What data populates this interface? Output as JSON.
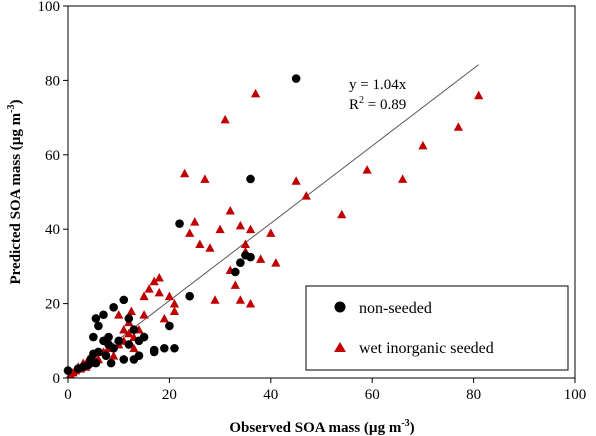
{
  "chart_data": {
    "type": "scatter",
    "xlabel": "Observed SOA mass (µg m",
    "ylabel": "Predicted SOA mass (µg m",
    "axis_unit_exponent": "-3",
    "xlim": [
      0,
      100
    ],
    "ylim": [
      0,
      100
    ],
    "x_ticks": [
      "0",
      "20",
      "40",
      "60",
      "80",
      "100"
    ],
    "y_ticks": [
      "0",
      "20",
      "40",
      "60",
      "80",
      "100"
    ],
    "grid": false,
    "legend_position": "bottom-right",
    "fit_line": {
      "equation": "y = 1.04x",
      "slope": 1.04,
      "x_range": [
        0,
        81
      ],
      "r2_prefix": "R",
      "r2_exponent": "2",
      "r2_value": " = 0.89",
      "color": "#595959"
    },
    "series": [
      {
        "name": "non-seeded",
        "marker": "circle",
        "color": "#000000",
        "points": [
          [
            0,
            2
          ],
          [
            2,
            2.5
          ],
          [
            3,
            3
          ],
          [
            4,
            3.5
          ],
          [
            4.5,
            5
          ],
          [
            5,
            6.5
          ],
          [
            5.5,
            4
          ],
          [
            6,
            7
          ],
          [
            5,
            11
          ],
          [
            5.5,
            16
          ],
          [
            6,
            14
          ],
          [
            7,
            17
          ],
          [
            7,
            10
          ],
          [
            7.5,
            6
          ],
          [
            8,
            11
          ],
          [
            8,
            9
          ],
          [
            8.5,
            4
          ],
          [
            9,
            8
          ],
          [
            9,
            19
          ],
          [
            10,
            10
          ],
          [
            11,
            21
          ],
          [
            11,
            5
          ],
          [
            12,
            9
          ],
          [
            12,
            16
          ],
          [
            13,
            13
          ],
          [
            13,
            5
          ],
          [
            14,
            10
          ],
          [
            14,
            6
          ],
          [
            15,
            11
          ],
          [
            17,
            7
          ],
          [
            17,
            7.5
          ],
          [
            19,
            8
          ],
          [
            20,
            14
          ],
          [
            21,
            8
          ],
          [
            22,
            41.5
          ],
          [
            24,
            22
          ],
          [
            33,
            28.5
          ],
          [
            34,
            31
          ],
          [
            35,
            33
          ],
          [
            36,
            53.5
          ],
          [
            36,
            32.5
          ],
          [
            45,
            80.5
          ]
        ]
      },
      {
        "name": "wet inorganic seeded",
        "marker": "triangle",
        "color": "#c00000",
        "points": [
          [
            0.5,
            1
          ],
          [
            1,
            1.5
          ],
          [
            1.5,
            2
          ],
          [
            2,
            3
          ],
          [
            2.5,
            2.5
          ],
          [
            3,
            4
          ],
          [
            3.5,
            3
          ],
          [
            4,
            5
          ],
          [
            4.5,
            4
          ],
          [
            5,
            6
          ],
          [
            6,
            5
          ],
          [
            7,
            7
          ],
          [
            8,
            8
          ],
          [
            9,
            6
          ],
          [
            10,
            9
          ],
          [
            10,
            17
          ],
          [
            11,
            13
          ],
          [
            11,
            10
          ],
          [
            12,
            15
          ],
          [
            12,
            12
          ],
          [
            12.5,
            18
          ],
          [
            13,
            11
          ],
          [
            13,
            8
          ],
          [
            14,
            13
          ],
          [
            15,
            17
          ],
          [
            15,
            22
          ],
          [
            16,
            24
          ],
          [
            17,
            26
          ],
          [
            18,
            27
          ],
          [
            18,
            23
          ],
          [
            19,
            16
          ],
          [
            20,
            22
          ],
          [
            21,
            20
          ],
          [
            21,
            18
          ],
          [
            23,
            55
          ],
          [
            24,
            39
          ],
          [
            25,
            42
          ],
          [
            26,
            36
          ],
          [
            27,
            53.5
          ],
          [
            28,
            35
          ],
          [
            29,
            21
          ],
          [
            30,
            40
          ],
          [
            31,
            69.5
          ],
          [
            32,
            45
          ],
          [
            32,
            29
          ],
          [
            33,
            25
          ],
          [
            34,
            21
          ],
          [
            34,
            41
          ],
          [
            35,
            36
          ],
          [
            35,
            34
          ],
          [
            36,
            20
          ],
          [
            36,
            40
          ],
          [
            37,
            76.5
          ],
          [
            38,
            32
          ],
          [
            40,
            39
          ],
          [
            41,
            31
          ],
          [
            45,
            53
          ],
          [
            47,
            49
          ],
          [
            54,
            44
          ],
          [
            59,
            56
          ],
          [
            66,
            53.5
          ],
          [
            70,
            62.5
          ],
          [
            77,
            67.5
          ],
          [
            81,
            76
          ]
        ]
      }
    ]
  }
}
